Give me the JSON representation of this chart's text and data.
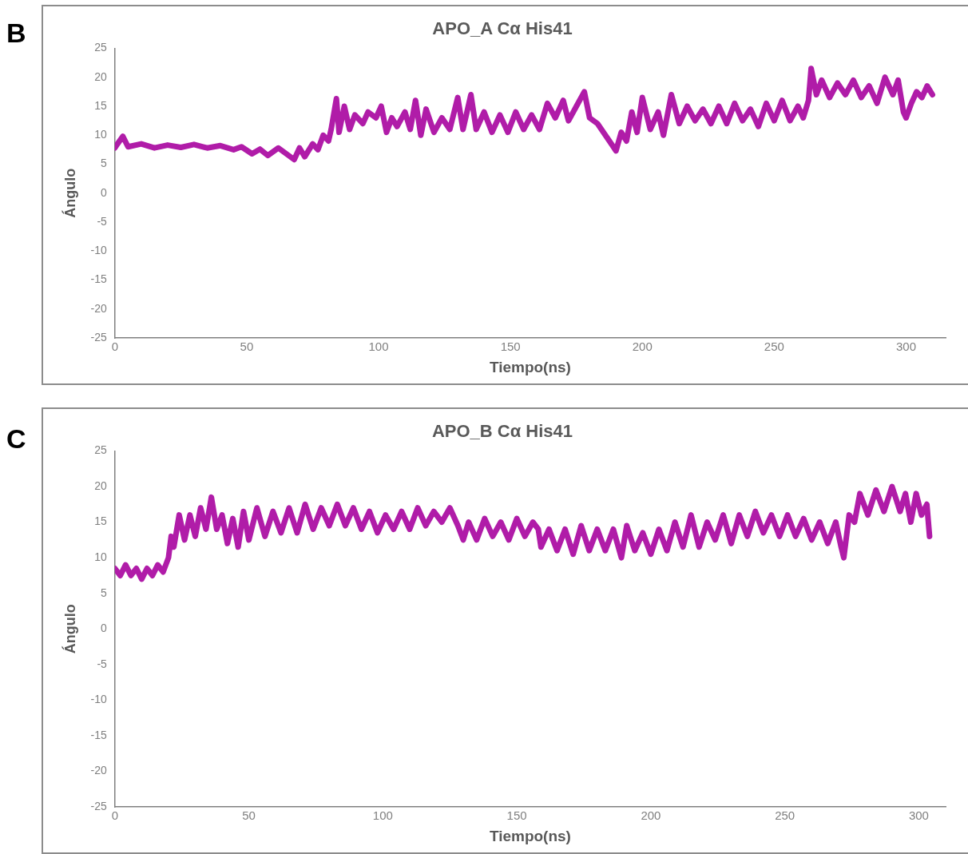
{
  "chart_data": [
    {
      "type": "line",
      "title": "APO_A Cα His41",
      "xlabel": "Tiempo(ns)",
      "ylabel": "Ángulo",
      "annotations": [
        "B"
      ],
      "xlim": [
        0,
        315
      ],
      "xticks": [
        0,
        50,
        100,
        150,
        200,
        250,
        300
      ],
      "ylim": [
        -25,
        25
      ],
      "yticks": [
        -25,
        -20,
        -15,
        -10,
        -5,
        0,
        5,
        10,
        15,
        20,
        25
      ],
      "grid": false,
      "legend": false,
      "marker": "none",
      "line_style": "solid",
      "series": [
        {
          "color": "#b01ca8",
          "x": [
            0,
            1,
            3,
            5,
            10,
            15,
            20,
            25,
            30,
            35,
            40,
            45,
            48,
            52,
            55,
            58,
            62,
            65,
            68,
            70,
            72,
            75,
            77,
            79,
            81,
            82,
            84,
            85,
            87,
            89,
            91,
            94,
            96,
            99,
            101,
            103,
            105,
            107,
            110,
            112,
            114,
            116,
            118,
            121,
            124,
            127,
            130,
            132,
            135,
            137,
            140,
            143,
            146,
            149,
            152,
            155,
            158,
            161,
            164,
            167,
            170,
            172,
            175,
            178,
            180,
            183,
            186,
            189,
            190,
            192,
            194,
            196,
            198,
            200,
            203,
            206,
            208,
            211,
            214,
            217,
            220,
            223,
            226,
            229,
            232,
            235,
            238,
            241,
            244,
            247,
            250,
            253,
            256,
            259,
            261,
            263,
            264,
            266,
            268,
            271,
            274,
            277,
            280,
            283,
            286,
            289,
            292,
            295,
            297,
            299,
            300,
            302,
            304,
            306,
            308,
            310
          ],
          "values": [
            7.8,
            8.5,
            9.8,
            8,
            8.5,
            7.8,
            8.3,
            7.9,
            8.4,
            7.8,
            8.2,
            7.5,
            8,
            6.8,
            7.6,
            6.5,
            7.8,
            6.8,
            5.8,
            7.8,
            6.3,
            8.5,
            7.5,
            10,
            9,
            11,
            16.3,
            10.5,
            15,
            11,
            13.5,
            12,
            14,
            13,
            15,
            10.5,
            13,
            11.5,
            14,
            11,
            16,
            10,
            14.5,
            10.5,
            13,
            11,
            16.5,
            11,
            17,
            11,
            14,
            10.5,
            13.5,
            10.5,
            14,
            11,
            13.5,
            11,
            15.5,
            13,
            16,
            12.5,
            15,
            17.5,
            13,
            12,
            10,
            8,
            7.3,
            10.5,
            9,
            14,
            10.5,
            16.5,
            11,
            14,
            10,
            17,
            12,
            15,
            12.5,
            14.5,
            12,
            15,
            12,
            15.5,
            12.5,
            14.5,
            11.5,
            15.5,
            12.5,
            16,
            12.5,
            15,
            13,
            16,
            21.5,
            17,
            19.5,
            16.5,
            19,
            17,
            19.5,
            16.5,
            18.5,
            15.5,
            20,
            17,
            19.5,
            14,
            13,
            15.5,
            17.5,
            16.5,
            18.5,
            17
          ]
        }
      ]
    },
    {
      "type": "line",
      "title": "APO_B Cα His41",
      "xlabel": "Tiempo(ns)",
      "ylabel": "Ángulo",
      "annotations": [
        "C"
      ],
      "xlim": [
        0,
        310
      ],
      "xticks": [
        0,
        50,
        100,
        150,
        200,
        250,
        300
      ],
      "ylim": [
        -25,
        25
      ],
      "yticks": [
        -25,
        -20,
        -15,
        -10,
        -5,
        0,
        5,
        10,
        15,
        20,
        25
      ],
      "grid": false,
      "legend": false,
      "marker": "none",
      "line_style": "solid",
      "series": [
        {
          "color": "#b01ca8",
          "x": [
            0,
            2,
            4,
            6,
            8,
            10,
            12,
            14,
            16,
            18,
            20,
            21,
            22,
            24,
            26,
            28,
            30,
            32,
            34,
            36,
            38,
            40,
            42,
            44,
            46,
            48,
            50,
            53,
            56,
            59,
            62,
            65,
            68,
            71,
            74,
            77,
            80,
            83,
            86,
            89,
            92,
            95,
            98,
            101,
            104,
            107,
            110,
            113,
            116,
            119,
            122,
            125,
            128,
            130,
            132,
            135,
            138,
            141,
            144,
            147,
            150,
            153,
            156,
            158,
            159,
            162,
            165,
            168,
            171,
            174,
            177,
            180,
            183,
            186,
            189,
            191,
            194,
            197,
            200,
            203,
            206,
            209,
            212,
            215,
            218,
            221,
            224,
            227,
            230,
            233,
            236,
            239,
            242,
            245,
            248,
            251,
            254,
            257,
            260,
            263,
            266,
            269,
            271,
            272,
            274,
            276,
            278,
            281,
            284,
            287,
            290,
            293,
            295,
            297,
            299,
            301,
            303,
            304
          ],
          "values": [
            8.5,
            7.5,
            9,
            7.5,
            8.5,
            7,
            8.5,
            7.5,
            9,
            8,
            10,
            13,
            11.5,
            16,
            12.5,
            16,
            13,
            17,
            14,
            18.5,
            14,
            16,
            12,
            15.5,
            11.5,
            16.5,
            12.5,
            17,
            13,
            16.5,
            13.5,
            17,
            13.5,
            17.5,
            14,
            17,
            14.5,
            17.5,
            14.5,
            17,
            14,
            16.5,
            13.5,
            16,
            14,
            16.5,
            14,
            17,
            14.5,
            16.5,
            15,
            17,
            14.5,
            12.5,
            15,
            12.5,
            15.5,
            13,
            15,
            12.5,
            15.5,
            13,
            15,
            14,
            11.5,
            14,
            11,
            14,
            10.5,
            14.5,
            11,
            14,
            11,
            14,
            10,
            14.5,
            11,
            13.5,
            10.5,
            14,
            11,
            15,
            11.5,
            16,
            11.5,
            15,
            12.5,
            16,
            12,
            16,
            13,
            16.5,
            13.5,
            16,
            13,
            16,
            13,
            15.5,
            12.5,
            15,
            12,
            15,
            11.5,
            10,
            16,
            15,
            19,
            16,
            19.5,
            16.5,
            20,
            16.5,
            19,
            15,
            19,
            16,
            17.5,
            13
          ]
        }
      ]
    }
  ]
}
